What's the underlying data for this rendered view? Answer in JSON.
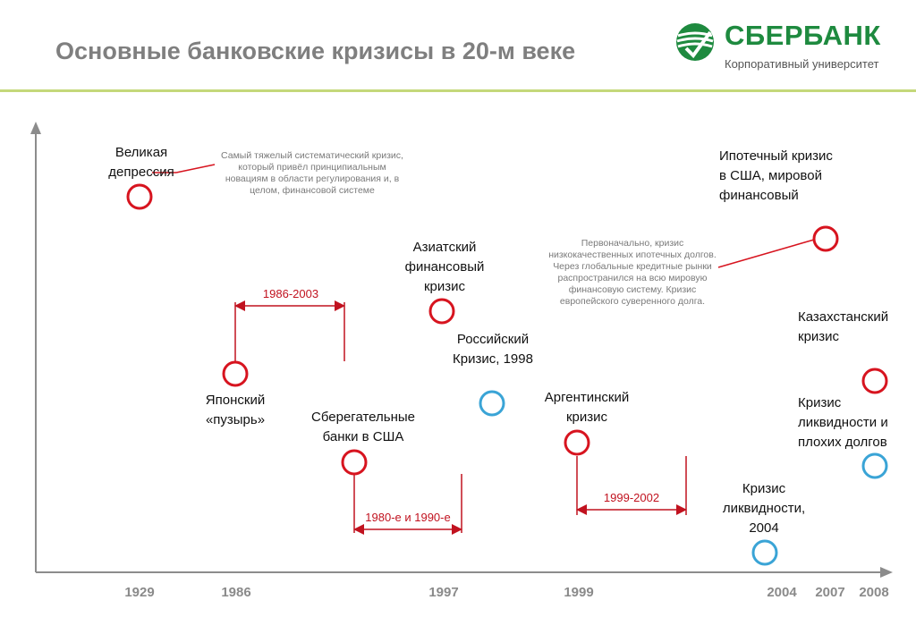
{
  "header": {
    "title": "Основные банковские кризисы в 20-м веке",
    "logo_name": "СБЕРБАНК",
    "logo_subtitle": "Корпоративный университет"
  },
  "years": [
    "1929",
    "1986",
    "1997",
    "1999",
    "2004",
    "2007",
    "2008"
  ],
  "crises": {
    "great_depression": "Великая депрессия",
    "japan": "Японский «пузырь»",
    "us_savings": "Сберегательные банки в США",
    "asian": "Азиатский финансовый кризис",
    "russian": "Российский Кризис, 1998",
    "argentine": "Аргентинский кризис",
    "liquidity_2004": "Кризис ликвидности, 2004",
    "mortgage": "Ипотечный кризис в США, мировой финансовый",
    "kazakhstan": "Казахстанский кризис",
    "liquidity_bad_debts": "Кризис ликвидности и плохих долгов"
  },
  "notes": {
    "great_depression": "Самый тяжелый систематический кризис, который привёл принципиальным новациям в области регулирования и, в целом, финансовой системе",
    "mortgage": "Первоначально, кризис низкокачественных ипотечных долгов. Через глобальные кредитные рынки распространился на всю мировую финансовую систему. Кризис европейского суверенного долга."
  },
  "ranges": {
    "japan": "1986-2003",
    "us_savings": "1980-е и 1990-е",
    "argentine": "1999-2002"
  },
  "colors": {
    "red_marker": "#d7141f",
    "blue_marker": "#3aa4d6",
    "range_red": "#c1121f",
    "axis": "#8c8c8c",
    "title_gray": "#7f7f7f",
    "rule_green": "#c4d87a",
    "brand_green": "#1e8a3f"
  }
}
